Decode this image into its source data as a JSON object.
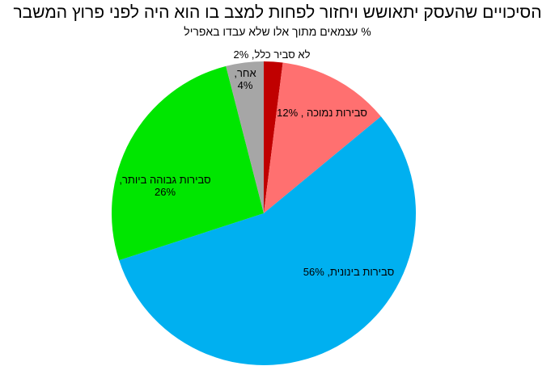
{
  "chart_data": {
    "type": "pie",
    "title": "הסיכויים שהעסק יתאושש ויחזור לפחות למצב בו הוא היה לפני פרוץ המשבר",
    "subtitle": "% עצמאים מתוך אלו שלא עבדו באפריל",
    "slices": [
      {
        "name": "לא סביר כלל",
        "value": 2,
        "pct_label": "2%",
        "color": "#c00000"
      },
      {
        "name": "סבירות נמוכה",
        "value": 12,
        "pct_label": "12%",
        "color": "#ff7070"
      },
      {
        "name": "סבירות בינונית",
        "value": 56,
        "pct_label": "56%",
        "color": "#00b0f0"
      },
      {
        "name": "סבירות גבוהה ביותר",
        "value": 26,
        "pct_label": "26%",
        "color": "#00e600"
      },
      {
        "name": "אחר",
        "value": 4,
        "pct_label": "4%",
        "color": "#a6a6a6"
      }
    ],
    "label_texts": [
      [
        "לא סביר כלל, 2%"
      ],
      [
        "סבירות נמוכה , 12%"
      ],
      [
        "סבירות בינונית, 56%"
      ],
      [
        "סבירות גבוהה ביותר,",
        "26%"
      ],
      [
        "אחר,",
        "4%"
      ]
    ],
    "start_angle_deg": 0,
    "direction": "clockwise",
    "legend": "none"
  }
}
